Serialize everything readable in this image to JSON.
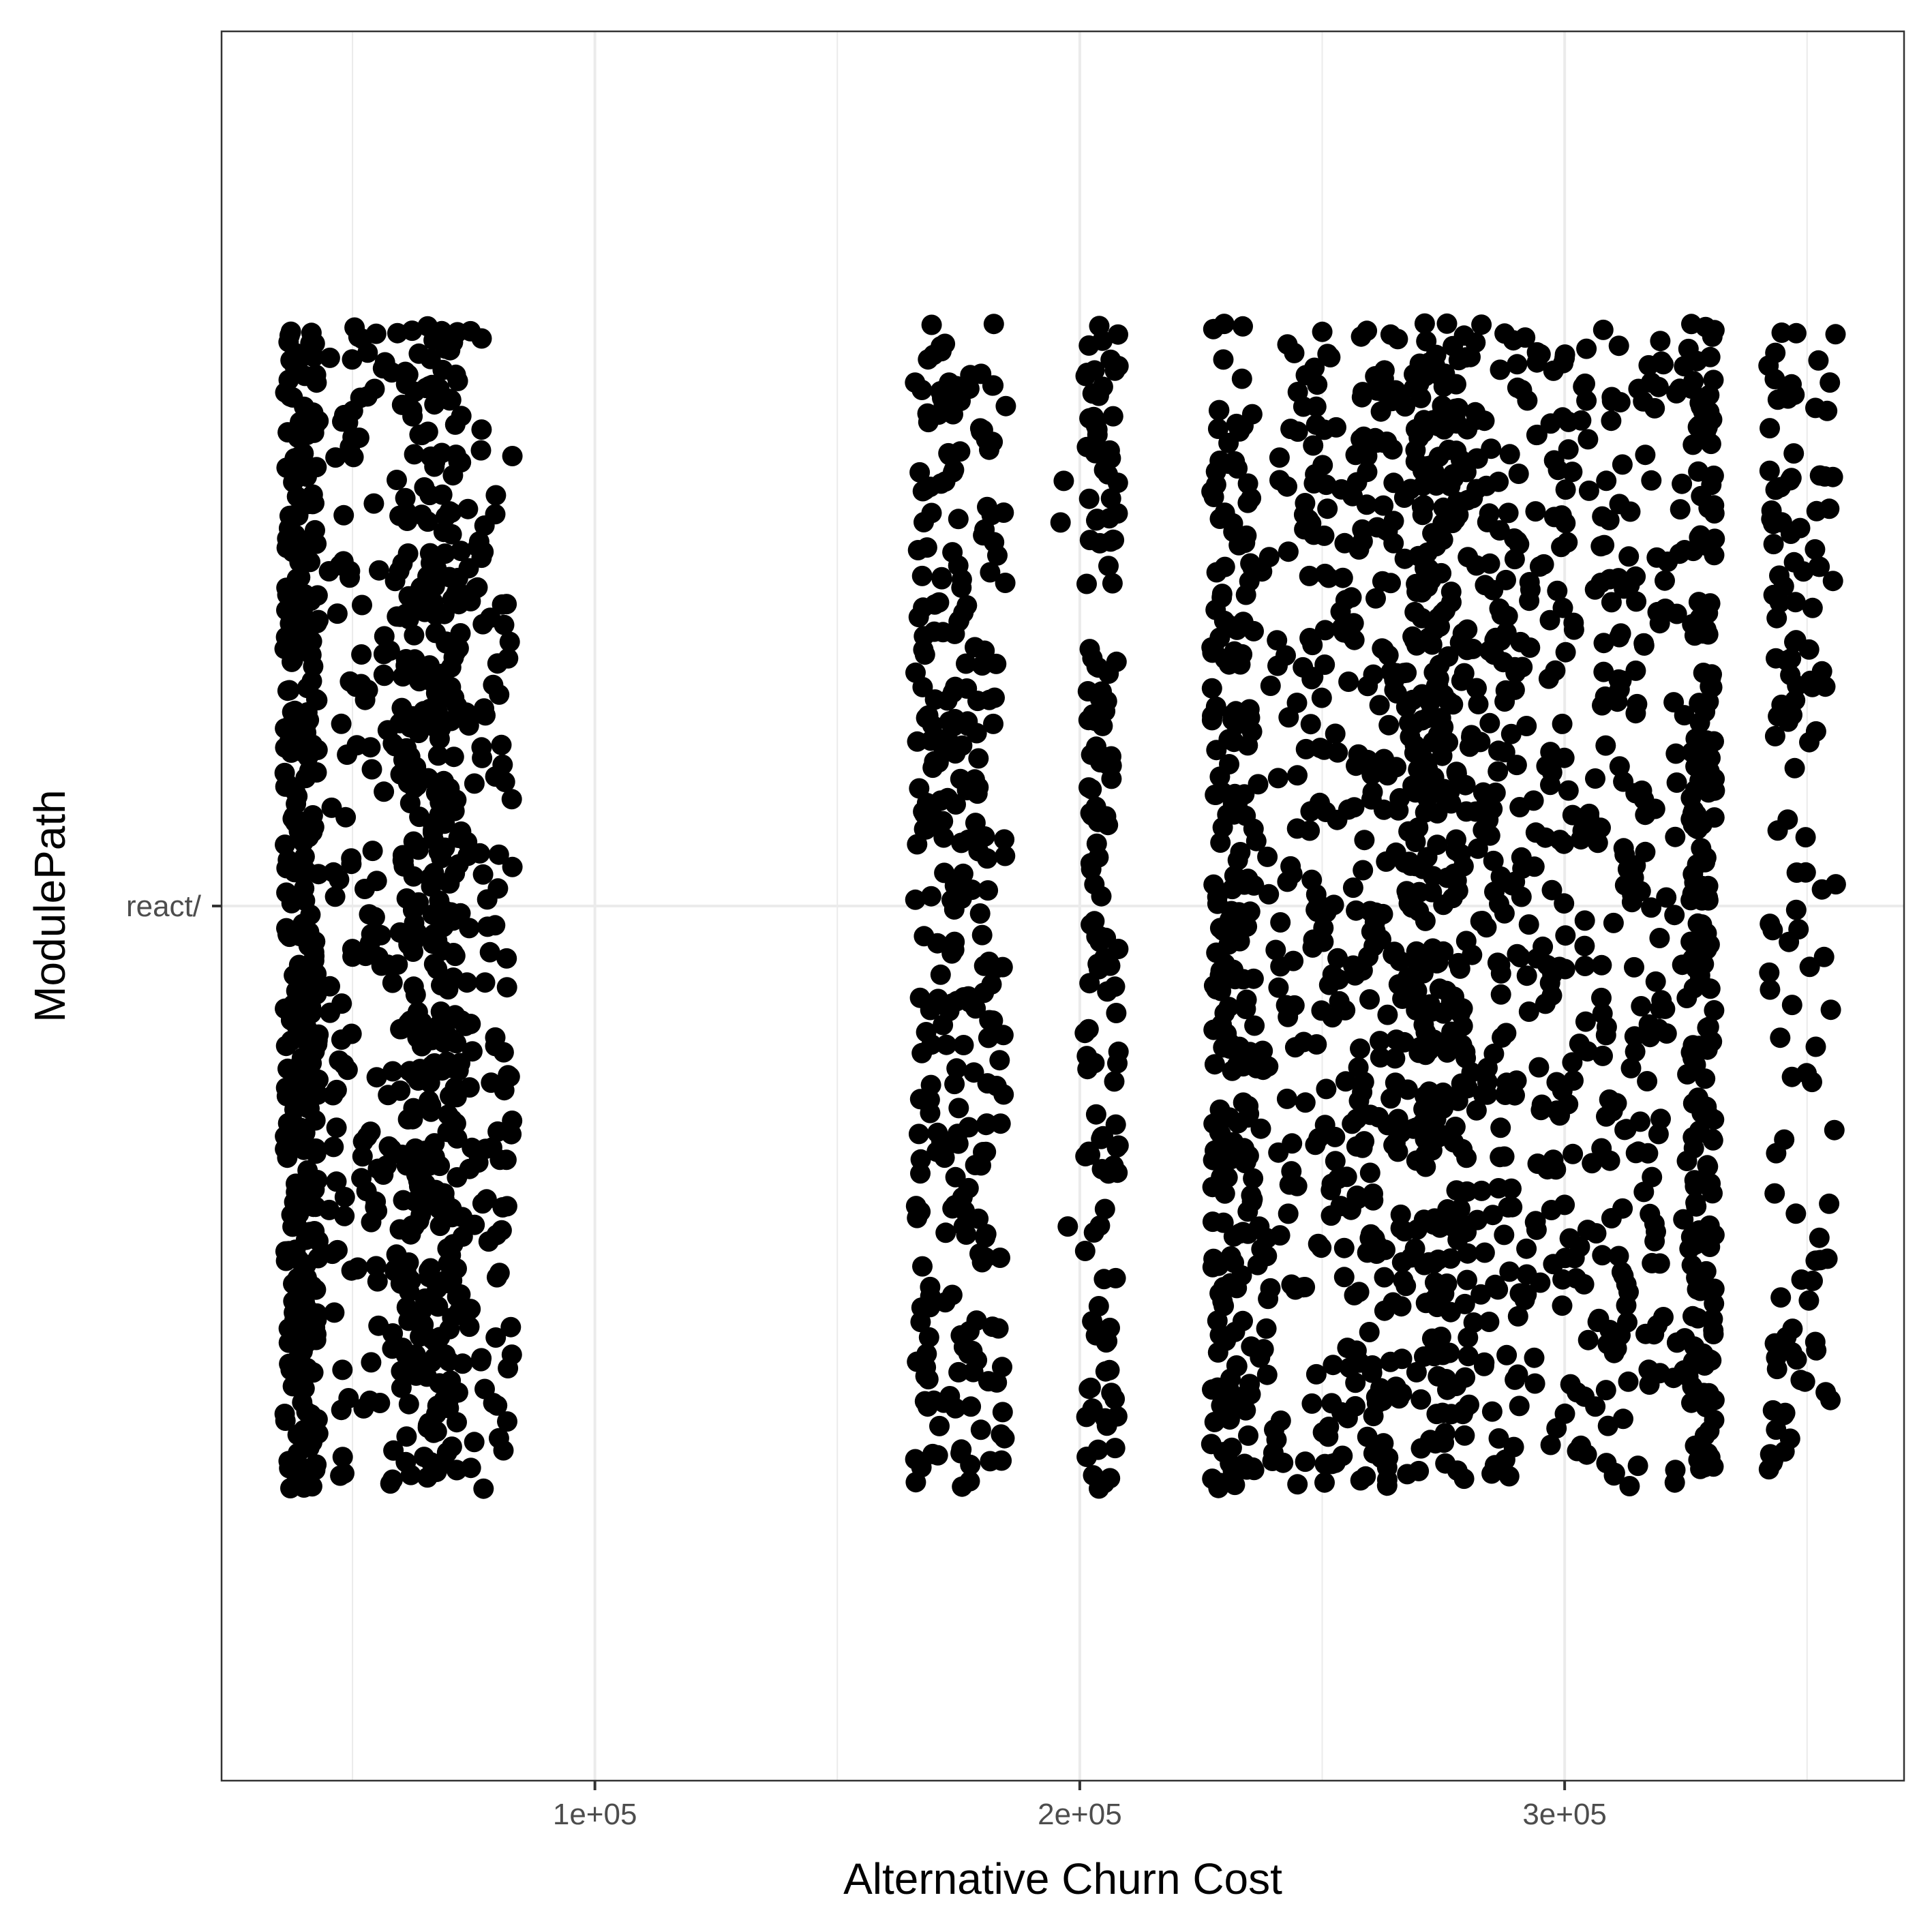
{
  "chart_data": {
    "type": "scatter",
    "title": "",
    "xlabel": "Alternative Churn Cost",
    "ylabel": "ModulePath",
    "xlim": [
      23000,
      370000
    ],
    "x_ticks": [
      {
        "value": 100000,
        "label": "1e+05"
      },
      {
        "value": 200000,
        "label": "2e+05"
      },
      {
        "value": 300000,
        "label": "3e+05"
      }
    ],
    "y_categories": [
      "react/"
    ],
    "grid": true,
    "jitter_height": 0.4,
    "point_color": "#000000",
    "clusters": [
      {
        "x_min": 36000,
        "x_max": 43000,
        "n": 360
      },
      {
        "x_min": 45000,
        "x_max": 60000,
        "n": 150
      },
      {
        "x_min": 60000,
        "x_max": 72000,
        "n": 360
      },
      {
        "x_min": 72000,
        "x_max": 83000,
        "n": 120
      },
      {
        "x_min": 166000,
        "x_max": 172000,
        "n": 110
      },
      {
        "x_min": 172000,
        "x_max": 185000,
        "n": 180
      },
      {
        "x_min": 196000,
        "x_max": 199000,
        "n": 3
      },
      {
        "x_min": 201000,
        "x_max": 208000,
        "n": 150
      },
      {
        "x_min": 227000,
        "x_max": 236000,
        "n": 230
      },
      {
        "x_min": 236000,
        "x_max": 245000,
        "n": 70
      },
      {
        "x_min": 246000,
        "x_max": 262000,
        "n": 210
      },
      {
        "x_min": 262000,
        "x_max": 269000,
        "n": 110
      },
      {
        "x_min": 269000,
        "x_max": 280000,
        "n": 300
      },
      {
        "x_min": 280000,
        "x_max": 300000,
        "n": 230
      },
      {
        "x_min": 300000,
        "x_max": 318000,
        "n": 180
      },
      {
        "x_min": 318000,
        "x_max": 326000,
        "n": 60
      },
      {
        "x_min": 326000,
        "x_max": 331000,
        "n": 200
      },
      {
        "x_min": 342000,
        "x_max": 348000,
        "n": 80
      },
      {
        "x_min": 348000,
        "x_max": 356000,
        "n": 50
      }
    ]
  }
}
